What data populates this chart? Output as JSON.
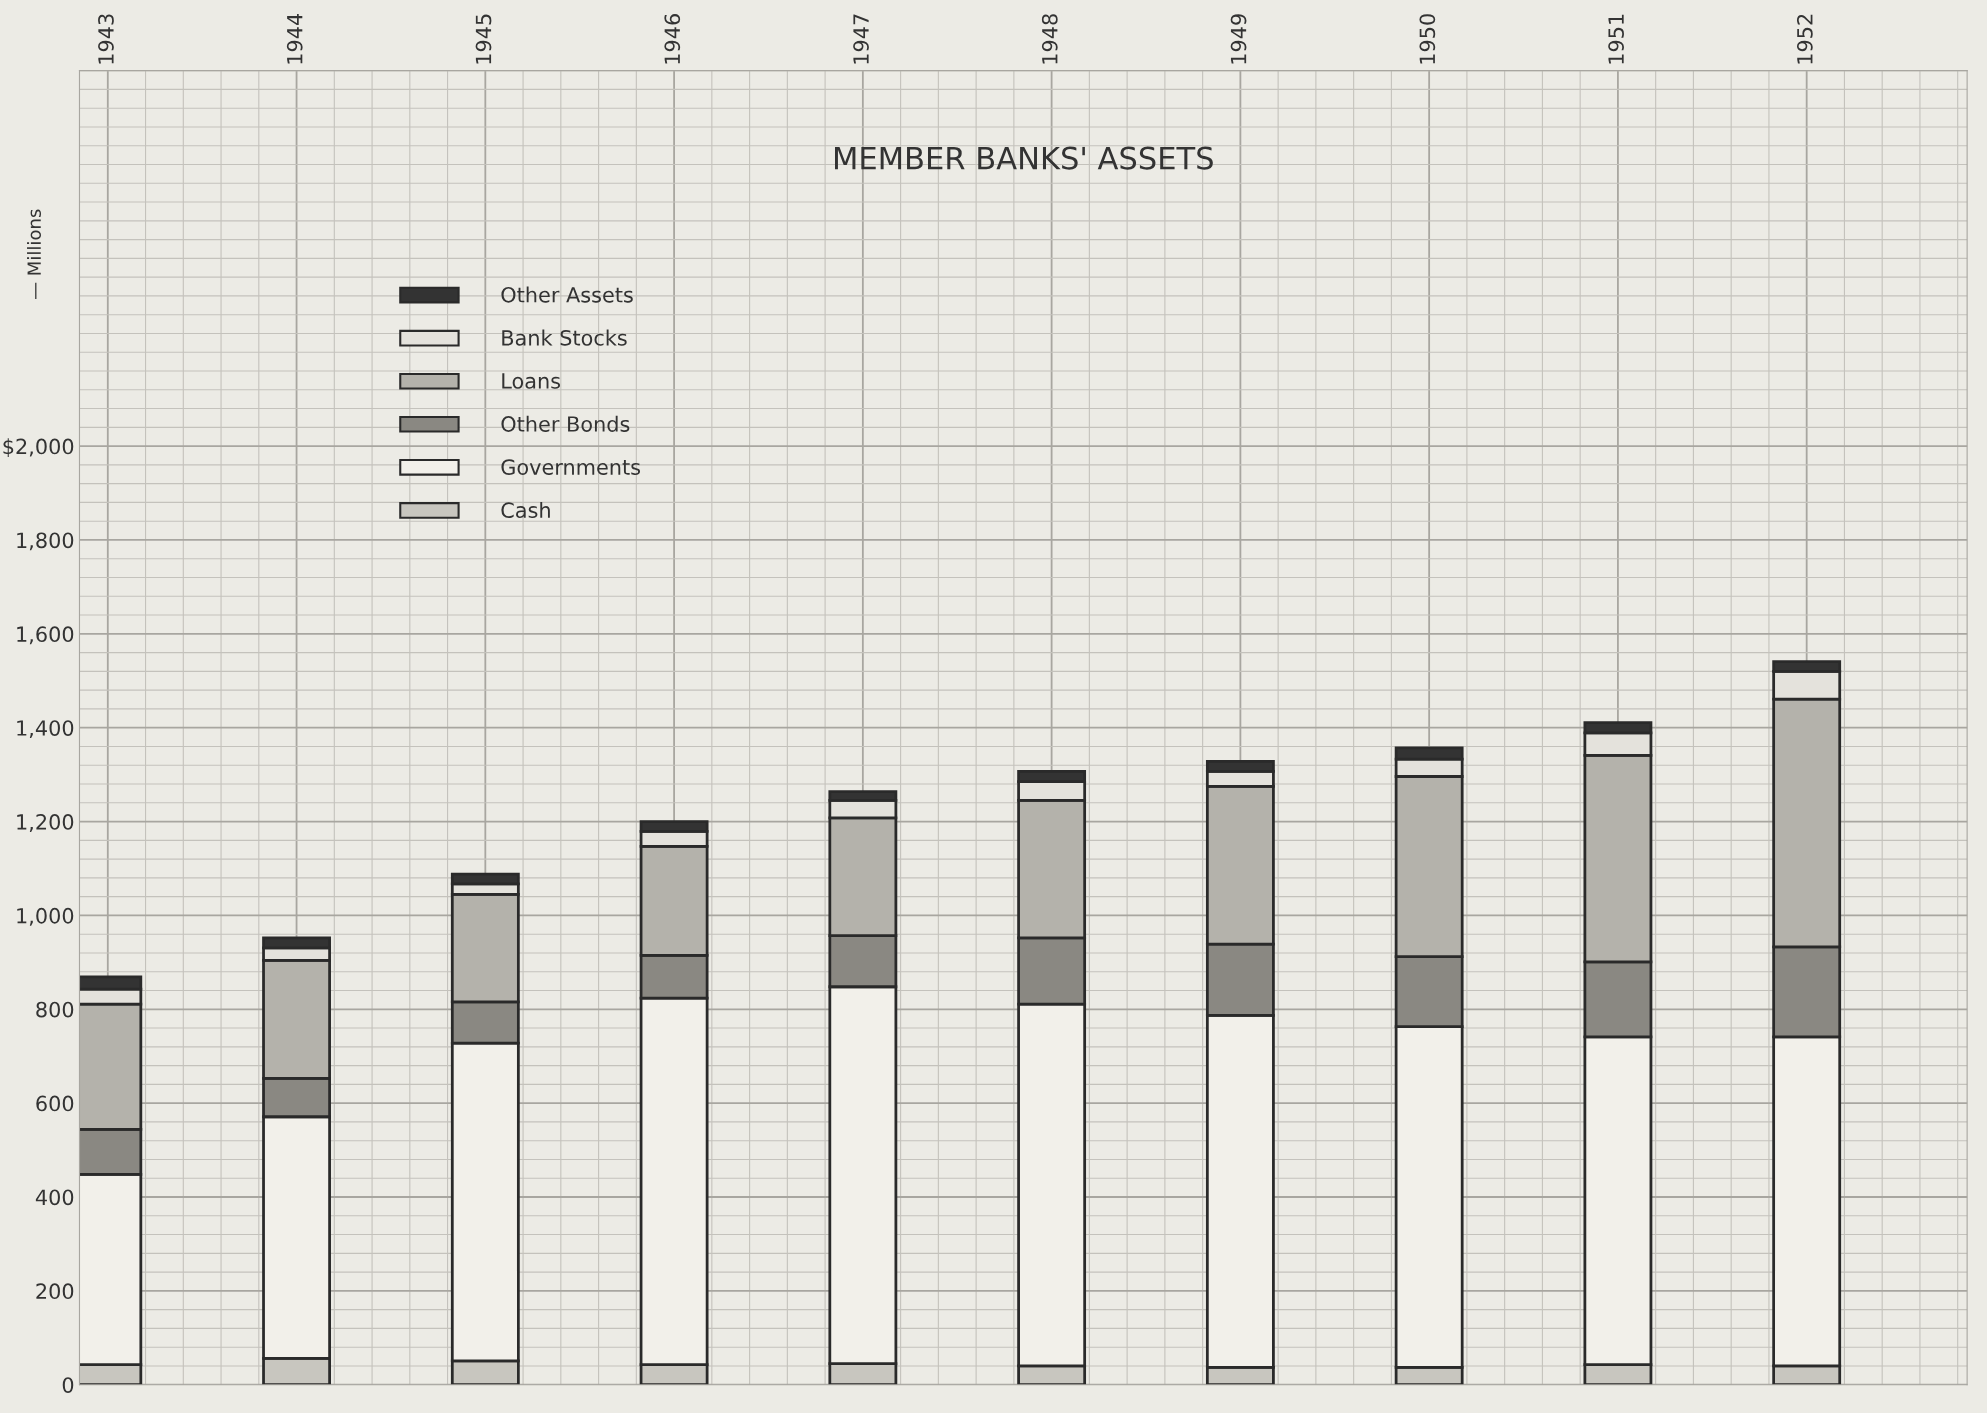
{
  "chart_data": {
    "type": "bar",
    "title": "MEMBER BANKS' ASSETS",
    "ylabel": "— Millions",
    "categories": [
      "1943",
      "1944",
      "1945",
      "1946",
      "1947",
      "1948",
      "1949",
      "1950",
      "1951",
      "1952"
    ],
    "stacked": true,
    "ylim": [
      0,
      2800
    ],
    "yticks": [
      0,
      {
        "value": 200,
        "label": "200"
      },
      {
        "value": 400,
        "label": "400"
      },
      {
        "value": 600,
        "label": "600"
      },
      {
        "value": 800,
        "label": "800"
      },
      {
        "value": 1000,
        "label": "1,000"
      },
      {
        "value": 1200,
        "label": "1,200"
      },
      {
        "value": 1400,
        "label": "1,400"
      },
      {
        "value": 1600,
        "label": "1,600"
      },
      {
        "value": 1800,
        "label": "1,800"
      },
      {
        "value": 2000,
        "label": "$2,000"
      }
    ],
    "grid": true,
    "legend": "top left",
    "series": [
      {
        "name": "Cash",
        "color": "#c8c6bf",
        "values": [
          43,
          56,
          51,
          43,
          45,
          40,
          37,
          37,
          43,
          40
        ]
      },
      {
        "name": "Governments",
        "color": "#f2f0ea",
        "values": [
          405,
          515,
          677,
          781,
          803,
          771,
          750,
          726,
          698,
          701
        ]
      },
      {
        "name": "Other Bonds",
        "color": "#8a8882",
        "values": [
          96,
          82,
          88,
          91,
          109,
          141,
          152,
          149,
          160,
          192
        ]
      },
      {
        "name": "Loans",
        "color": "#b4b2ab",
        "values": [
          267,
          251,
          229,
          232,
          251,
          293,
          336,
          384,
          440,
          528
        ]
      },
      {
        "name": "Bank Stocks",
        "color": "#e4e2dc",
        "values": [
          32,
          27,
          22,
          32,
          37,
          40,
          32,
          37,
          48,
          59
        ]
      },
      {
        "name": "Other Assets",
        "color": "#333333",
        "values": [
          26,
          21,
          21,
          21,
          19,
          22,
          21,
          24,
          22,
          21
        ]
      }
    ]
  }
}
